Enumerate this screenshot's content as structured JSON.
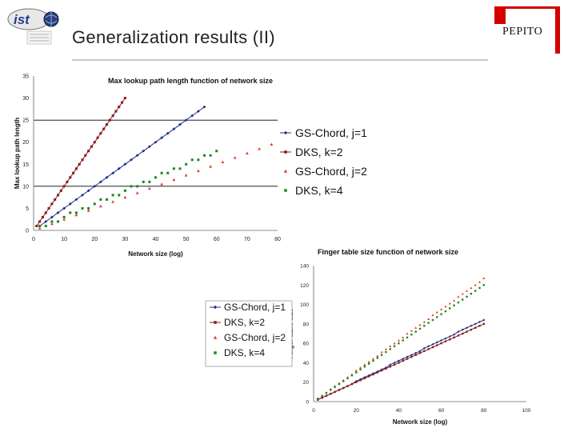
{
  "slide": {
    "title": "Generalization results (II)",
    "logo_text": "ist",
    "brand": "PEPITO"
  },
  "chart_data": [
    {
      "type": "scatter",
      "title": "Max lookup path length function of network size",
      "xlabel": "Network size (log)",
      "ylabel": "Max lookup path length",
      "xlim": [
        0,
        80
      ],
      "ylim": [
        0,
        35
      ],
      "xticks": [
        0,
        10,
        20,
        30,
        40,
        50,
        60,
        70,
        80
      ],
      "yticks": [
        0,
        5,
        10,
        15,
        20,
        25,
        30,
        35
      ],
      "grid": "horizontal",
      "legend_position": "right",
      "series": [
        {
          "name": "GS-Chord, j=1",
          "color": "#1f2f8a",
          "marker": "diamond",
          "line": true,
          "x": [
            2,
            4,
            6,
            8,
            10,
            12,
            14,
            16,
            18,
            20,
            22,
            24,
            26,
            28,
            30,
            32,
            34,
            36,
            38,
            40,
            42,
            44,
            46,
            48,
            50,
            52,
            54,
            56
          ],
          "y": [
            1,
            2,
            3,
            4,
            5,
            6,
            7,
            8,
            9,
            10,
            11,
            12,
            13,
            14,
            15,
            16,
            17,
            18,
            19,
            20,
            21,
            22,
            23,
            24,
            25,
            26,
            27,
            28
          ]
        },
        {
          "name": "DKS, k=2",
          "color": "#8b1a1a",
          "marker": "square",
          "line": true,
          "x": [
            1,
            2,
            3,
            4,
            5,
            6,
            7,
            8,
            9,
            10,
            11,
            12,
            13,
            14,
            15,
            16,
            17,
            18,
            19,
            20,
            21,
            22,
            23,
            24,
            25,
            26,
            27,
            28,
            29,
            30
          ],
          "y": [
            1,
            2,
            3,
            4,
            5,
            6,
            7,
            8,
            9,
            10,
            11,
            12,
            13,
            14,
            15,
            16,
            17,
            18,
            19,
            20,
            21,
            22,
            23,
            24,
            25,
            26,
            27,
            28,
            29,
            30
          ]
        },
        {
          "name": "GS-Chord, j=2",
          "color": "#e03a2a",
          "marker": "triangle",
          "line": false,
          "x": [
            2,
            6,
            10,
            14,
            18,
            22,
            26,
            30,
            34,
            38,
            42,
            46,
            50,
            54,
            58,
            62,
            66,
            70,
            74,
            78
          ],
          "y": [
            0.5,
            1.5,
            2.5,
            3.5,
            4.5,
            5.5,
            6.5,
            7.5,
            8.5,
            9.5,
            10.5,
            11.5,
            12.5,
            13.5,
            14.5,
            15.5,
            16.5,
            17.5,
            18.5,
            19.5
          ]
        },
        {
          "name": "DKS, k=4",
          "color": "#1e8a1e",
          "marker": "square",
          "line": false,
          "x": [
            2,
            4,
            6,
            8,
            10,
            12,
            14,
            16,
            18,
            20,
            22,
            24,
            26,
            28,
            30,
            32,
            34,
            36,
            38,
            40,
            42,
            44,
            46,
            48,
            50,
            52,
            54,
            56,
            58,
            60
          ],
          "y": [
            1,
            1,
            2,
            2,
            3,
            4,
            4,
            5,
            5,
            6,
            7,
            7,
            8,
            8,
            9,
            10,
            10,
            11,
            11,
            12,
            13,
            13,
            14,
            14,
            15,
            16,
            16,
            17,
            17,
            18
          ]
        }
      ]
    },
    {
      "type": "scatter",
      "title": "Finger table size function of network size",
      "xlabel": "Network size (log)",
      "ylabel": "Finger table size",
      "xlim": [
        0,
        100
      ],
      "ylim": [
        0,
        140
      ],
      "xticks": [
        0,
        20,
        40,
        60,
        80,
        100
      ],
      "yticks": [
        0,
        20,
        40,
        60,
        80,
        100,
        120,
        140
      ],
      "grid": "none",
      "legend_position": "left",
      "series": [
        {
          "name": "GS-Chord, j=1",
          "color": "#1f2f8a",
          "marker": "diamond",
          "line": true,
          "x": [
            2,
            4,
            6,
            8,
            10,
            12,
            14,
            16,
            18,
            20,
            22,
            24,
            26,
            28,
            30,
            32,
            34,
            36,
            38,
            40,
            42,
            44,
            46,
            48,
            50,
            52,
            54,
            56,
            58,
            60,
            62,
            64,
            66,
            68,
            70,
            72,
            74,
            76,
            78,
            80
          ],
          "y": [
            2,
            4,
            6,
            8,
            10,
            12,
            14,
            16,
            18,
            21,
            23,
            25,
            27,
            29,
            31,
            33,
            35,
            38,
            40,
            42,
            44,
            46,
            48,
            50,
            52,
            55,
            57,
            59,
            61,
            63,
            65,
            67,
            69,
            72,
            74,
            76,
            78,
            80,
            82,
            84
          ]
        },
        {
          "name": "DKS, k=2",
          "color": "#8b1a1a",
          "marker": "square",
          "line": true,
          "x": [
            2,
            4,
            6,
            8,
            10,
            12,
            14,
            16,
            18,
            20,
            22,
            24,
            26,
            28,
            30,
            32,
            34,
            36,
            38,
            40,
            42,
            44,
            46,
            48,
            50,
            52,
            54,
            56,
            58,
            60,
            62,
            64,
            66,
            68,
            70,
            72,
            74,
            76,
            78,
            80
          ],
          "y": [
            2,
            4,
            6,
            8,
            10,
            12,
            14,
            16,
            18,
            20,
            22,
            24,
            26,
            28,
            30,
            32,
            34,
            36,
            38,
            40,
            42,
            44,
            46,
            48,
            50,
            52,
            54,
            56,
            58,
            60,
            62,
            64,
            66,
            68,
            70,
            72,
            74,
            76,
            78,
            80
          ]
        },
        {
          "name": "GS-Chord, j=2",
          "color": "#e03a2a",
          "marker": "triangle",
          "line": false,
          "x": [
            2,
            4,
            6,
            8,
            10,
            12,
            14,
            16,
            18,
            20,
            22,
            24,
            26,
            28,
            30,
            32,
            34,
            36,
            38,
            40,
            42,
            44,
            46,
            48,
            50,
            52,
            54,
            56,
            58,
            60,
            62,
            64,
            66,
            68,
            70,
            72,
            74,
            76,
            78,
            80
          ],
          "y": [
            3,
            6,
            9,
            13,
            16,
            19,
            22,
            25,
            28,
            32,
            35,
            38,
            41,
            44,
            47,
            51,
            54,
            57,
            60,
            63,
            66,
            70,
            73,
            76,
            79,
            82,
            85,
            89,
            92,
            95,
            98,
            101,
            104,
            108,
            111,
            114,
            117,
            120,
            123,
            127
          ]
        },
        {
          "name": "DKS, k=4",
          "color": "#1e8a1e",
          "marker": "square",
          "line": false,
          "x": [
            2,
            4,
            6,
            8,
            10,
            12,
            14,
            16,
            18,
            20,
            22,
            24,
            26,
            28,
            30,
            32,
            34,
            36,
            38,
            40,
            42,
            44,
            46,
            48,
            50,
            52,
            54,
            56,
            58,
            60,
            62,
            64,
            66,
            68,
            70,
            72,
            74,
            76,
            78,
            80
          ],
          "y": [
            3,
            6,
            9,
            12,
            15,
            18,
            21,
            24,
            27,
            30,
            33,
            36,
            39,
            42,
            45,
            48,
            51,
            54,
            57,
            60,
            63,
            66,
            69,
            72,
            75,
            78,
            81,
            84,
            87,
            90,
            93,
            96,
            99,
            102,
            105,
            108,
            111,
            114,
            117,
            120
          ]
        }
      ]
    }
  ]
}
